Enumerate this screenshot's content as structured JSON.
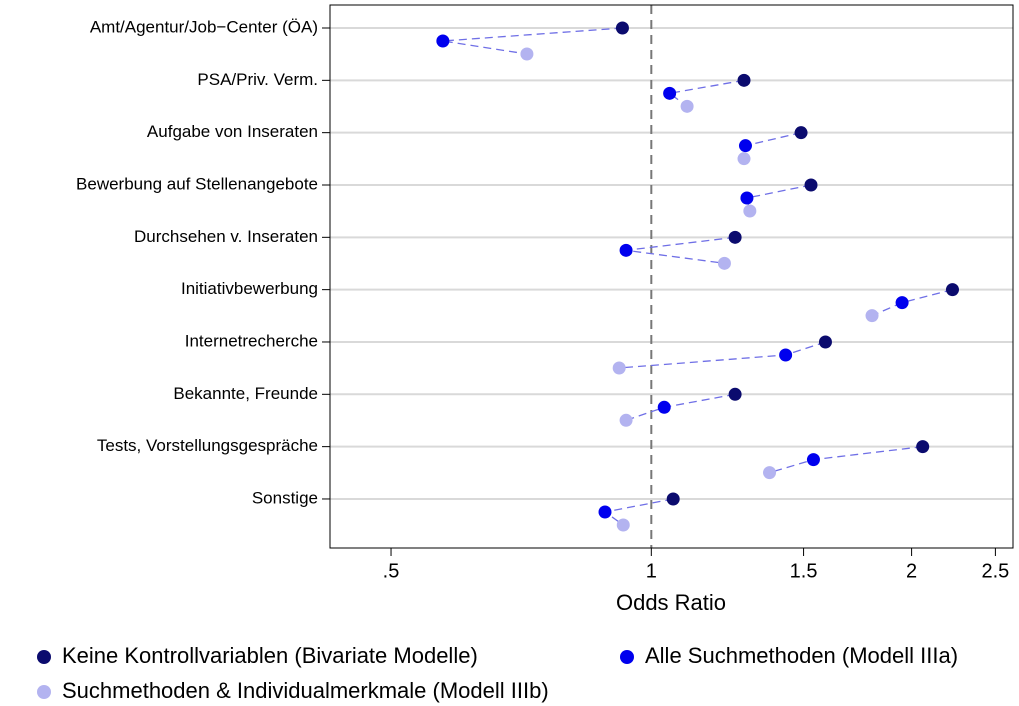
{
  "chart_data": {
    "type": "dot",
    "xlabel": "Odds Ratio",
    "log_x": true,
    "grid": true,
    "legend": "bottom",
    "reference_line": 1,
    "categories": [
      "Amt/Agentur/Job−Center (ÖA)",
      "PSA/Priv. Verm.",
      "Aufgabe von Inseraten",
      "Bewerbung auf Stellenangebote",
      "Durchsehen v. Inseraten",
      "Initiativbewerbung",
      "Internetrecherche",
      "Bekannte, Freunde",
      "Tests, Vorstellungsgespräche",
      "Sonstige"
    ],
    "series": [
      {
        "name": "Keine Kontrollvariablen (Bivariate Modelle)",
        "color": "#0b0b6e",
        "values": [
          0.926,
          1.28,
          1.49,
          1.53,
          1.25,
          2.23,
          1.59,
          1.25,
          2.06,
          1.06
        ]
      },
      {
        "name": "Alle Suchmethoden (Modell IIIa)",
        "color": "#0000ee",
        "values": [
          0.574,
          1.05,
          1.285,
          1.29,
          0.935,
          1.95,
          1.43,
          1.035,
          1.54,
          0.884
        ]
      },
      {
        "name": "Suchmethoden & Individualmerkmale (Modell IIIb)",
        "color": "#b3b3f0",
        "values": [
          0.718,
          1.1,
          1.28,
          1.3,
          1.215,
          1.8,
          0.918,
          0.935,
          1.37,
          0.928
        ]
      }
    ],
    "connector_color": "#6f6fe6",
    "xlim": [
      0.425,
      2.62
    ],
    "xticks": [
      {
        "value": 0.5,
        "label": ".5"
      },
      1,
      1.5,
      2,
      2.5
    ]
  }
}
